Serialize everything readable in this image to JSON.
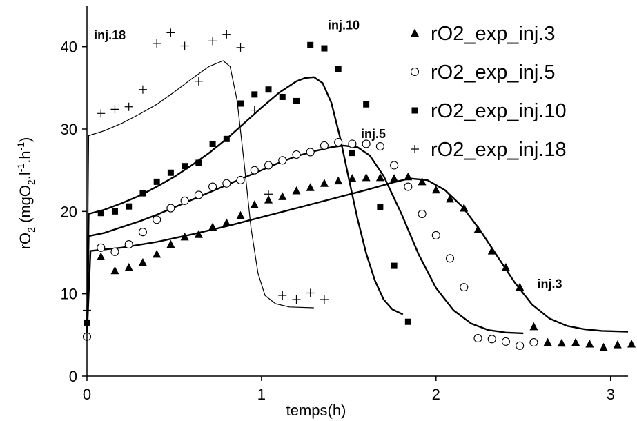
{
  "chart_data": {
    "type": "scatter",
    "title": "",
    "xlabel": "temps(h)",
    "ylabel": {
      "main": "rO",
      "sub": "2",
      "unit": " (mgO",
      "unit_sub": "2",
      "unit_rest": ".l",
      "sup1": "-1",
      "mid": ".h",
      "sup2": "-1",
      "close": ")"
    },
    "xlim": [
      0,
      3.1
    ],
    "ylim": [
      0,
      45
    ],
    "xticks": [
      0,
      1,
      2,
      3
    ],
    "yticks": [
      0,
      10,
      20,
      30,
      40
    ],
    "grid": false,
    "legend": "top-right",
    "series": [
      {
        "name": "rO2_exp_inj.3",
        "marker": "triangle",
        "points": [
          [
            0,
            5
          ],
          [
            0.08,
            14.5
          ],
          [
            0.16,
            12.8
          ],
          [
            0.24,
            13.2
          ],
          [
            0.32,
            13.8
          ],
          [
            0.4,
            14.8
          ],
          [
            0.48,
            16
          ],
          [
            0.56,
            16.9
          ],
          [
            0.64,
            17.2
          ],
          [
            0.72,
            18.1
          ],
          [
            0.8,
            18.6
          ],
          [
            0.88,
            19.5
          ],
          [
            0.96,
            20.8
          ],
          [
            1.04,
            21.4
          ],
          [
            1.12,
            21.8
          ],
          [
            1.2,
            22.5
          ],
          [
            1.28,
            22.9
          ],
          [
            1.36,
            23.4
          ],
          [
            1.44,
            23.7
          ],
          [
            1.52,
            24
          ],
          [
            1.6,
            24.1
          ],
          [
            1.68,
            24.1
          ],
          [
            1.76,
            24
          ],
          [
            1.84,
            24.2
          ],
          [
            1.92,
            23.6
          ],
          [
            2.0,
            22.6
          ],
          [
            2.08,
            21.5
          ],
          [
            2.16,
            20.4
          ],
          [
            2.24,
            17.8
          ],
          [
            2.32,
            15.2
          ],
          [
            2.4,
            13.2
          ],
          [
            2.48,
            10.8
          ],
          [
            2.56,
            6
          ],
          [
            2.64,
            4.1
          ],
          [
            2.72,
            4
          ],
          [
            2.8,
            4.1
          ],
          [
            2.88,
            3.9
          ],
          [
            2.96,
            3.5
          ],
          [
            3.04,
            3.8
          ],
          [
            3.12,
            3.9
          ]
        ]
      },
      {
        "name": "rO2_exp_inj.5",
        "marker": "circle",
        "points": [
          [
            0,
            4.8
          ],
          [
            0.08,
            15.6
          ],
          [
            0.16,
            15.1
          ],
          [
            0.24,
            16
          ],
          [
            0.32,
            17.5
          ],
          [
            0.4,
            19
          ],
          [
            0.48,
            20.4
          ],
          [
            0.56,
            21.3
          ],
          [
            0.64,
            22
          ],
          [
            0.72,
            23
          ],
          [
            0.8,
            23.4
          ],
          [
            0.88,
            23.8
          ],
          [
            0.96,
            25
          ],
          [
            1.04,
            25.6
          ],
          [
            1.12,
            26.2
          ],
          [
            1.2,
            26.9
          ],
          [
            1.28,
            27.2
          ],
          [
            1.36,
            28
          ],
          [
            1.44,
            28.4
          ],
          [
            1.52,
            28.2
          ],
          [
            1.6,
            28.2
          ],
          [
            1.68,
            27.9
          ],
          [
            1.76,
            25.6
          ],
          [
            1.84,
            23
          ],
          [
            1.92,
            19.7
          ],
          [
            2.0,
            17.1
          ],
          [
            2.08,
            14.3
          ],
          [
            2.16,
            10.8
          ],
          [
            2.24,
            4.6
          ],
          [
            2.32,
            4.5
          ],
          [
            2.4,
            4.2
          ],
          [
            2.48,
            3.7
          ],
          [
            2.56,
            4.1
          ]
        ]
      },
      {
        "name": "rO2_exp_inj.10",
        "marker": "square",
        "points": [
          [
            0,
            6.5
          ],
          [
            0.08,
            19.8
          ],
          [
            0.16,
            20
          ],
          [
            0.24,
            20.6
          ],
          [
            0.32,
            22.2
          ],
          [
            0.4,
            23.6
          ],
          [
            0.48,
            24.7
          ],
          [
            0.56,
            25.5
          ],
          [
            0.64,
            25.9
          ],
          [
            0.72,
            28.2
          ],
          [
            0.8,
            28.8
          ],
          [
            0.88,
            33.1
          ],
          [
            0.96,
            34.2
          ],
          [
            1.04,
            34.8
          ],
          [
            1.12,
            33.9
          ],
          [
            1.2,
            33.4
          ],
          [
            1.28,
            40.2
          ],
          [
            1.36,
            39.8
          ],
          [
            1.44,
            37.3
          ],
          [
            1.52,
            27.1
          ],
          [
            1.6,
            33
          ],
          [
            1.68,
            20.5
          ],
          [
            1.76,
            13.4
          ],
          [
            1.84,
            6.6
          ]
        ]
      },
      {
        "name": "rO2_exp_inj.18",
        "marker": "plus",
        "points": [
          [
            0,
            8
          ],
          [
            0.08,
            31.9
          ],
          [
            0.16,
            32.4
          ],
          [
            0.24,
            32.7
          ],
          [
            0.32,
            34.8
          ],
          [
            0.4,
            40.4
          ],
          [
            0.48,
            41.7
          ],
          [
            0.56,
            40.1
          ],
          [
            0.64,
            35.8
          ],
          [
            0.72,
            40.7
          ],
          [
            0.8,
            41.5
          ],
          [
            0.88,
            39.9
          ],
          [
            0.96,
            32.3
          ],
          [
            1.04,
            22.1
          ],
          [
            1.12,
            9.8
          ],
          [
            1.2,
            9.3
          ],
          [
            1.28,
            10.1
          ],
          [
            1.36,
            9.3
          ]
        ]
      }
    ],
    "model_curves": [
      {
        "label": "inj.18",
        "width": 1.2,
        "points": [
          [
            0,
            5
          ],
          [
            0.01,
            29.2
          ],
          [
            0.1,
            29.8
          ],
          [
            0.2,
            30.7
          ],
          [
            0.3,
            31.8
          ],
          [
            0.4,
            33
          ],
          [
            0.5,
            34.5
          ],
          [
            0.6,
            36.1
          ],
          [
            0.7,
            37.6
          ],
          [
            0.78,
            38.3
          ],
          [
            0.82,
            37.6
          ],
          [
            0.86,
            33.5
          ],
          [
            0.9,
            26
          ],
          [
            0.94,
            18
          ],
          [
            0.98,
            12.5
          ],
          [
            1.02,
            9.8
          ],
          [
            1.08,
            8.8
          ],
          [
            1.16,
            8.4
          ],
          [
            1.3,
            8.3
          ]
        ]
      },
      {
        "label": "inj.10",
        "width": 2.4,
        "points": [
          [
            0,
            5
          ],
          [
            0.01,
            19.7
          ],
          [
            0.1,
            20.2
          ],
          [
            0.2,
            21
          ],
          [
            0.3,
            21.9
          ],
          [
            0.4,
            23
          ],
          [
            0.5,
            24.2
          ],
          [
            0.6,
            25.6
          ],
          [
            0.7,
            27.1
          ],
          [
            0.8,
            28.8
          ],
          [
            0.9,
            30.7
          ],
          [
            1.0,
            32.6
          ],
          [
            1.1,
            34.4
          ],
          [
            1.2,
            35.8
          ],
          [
            1.25,
            36.2
          ],
          [
            1.3,
            36.3
          ],
          [
            1.35,
            35.6
          ],
          [
            1.4,
            33.2
          ],
          [
            1.45,
            29
          ],
          [
            1.5,
            24
          ],
          [
            1.55,
            19.1
          ],
          [
            1.6,
            14.9
          ],
          [
            1.65,
            11.6
          ],
          [
            1.7,
            9.3
          ],
          [
            1.75,
            8.1
          ],
          [
            1.81,
            7.5
          ]
        ]
      },
      {
        "label": "inj.5",
        "width": 2.4,
        "points": [
          [
            0,
            5
          ],
          [
            0.01,
            17
          ],
          [
            0.1,
            17.4
          ],
          [
            0.2,
            18.1
          ],
          [
            0.3,
            18.8
          ],
          [
            0.4,
            19.6
          ],
          [
            0.5,
            20.5
          ],
          [
            0.6,
            21.4
          ],
          [
            0.7,
            22.3
          ],
          [
            0.8,
            23.2
          ],
          [
            0.9,
            24.1
          ],
          [
            1.0,
            25
          ],
          [
            1.1,
            25.9
          ],
          [
            1.2,
            26.7
          ],
          [
            1.3,
            27.3
          ],
          [
            1.4,
            27.8
          ],
          [
            1.47,
            28
          ],
          [
            1.55,
            27.8
          ],
          [
            1.62,
            26.8
          ],
          [
            1.7,
            24.3
          ],
          [
            1.8,
            19.8
          ],
          [
            1.9,
            14.8
          ],
          [
            2.0,
            10.7
          ],
          [
            2.1,
            8
          ],
          [
            2.2,
            6.4
          ],
          [
            2.3,
            5.6
          ],
          [
            2.4,
            5.3
          ],
          [
            2.5,
            5.2
          ]
        ]
      },
      {
        "label": "inj.3",
        "width": 2.4,
        "points": [
          [
            0,
            5
          ],
          [
            0.02,
            15.2
          ],
          [
            0.2,
            15.6
          ],
          [
            0.4,
            16.3
          ],
          [
            0.6,
            17.2
          ],
          [
            0.8,
            18.2
          ],
          [
            1.0,
            19.3
          ],
          [
            1.2,
            20.4
          ],
          [
            1.4,
            21.5
          ],
          [
            1.6,
            22.6
          ],
          [
            1.75,
            23.5
          ],
          [
            1.85,
            24
          ],
          [
            1.95,
            23.8
          ],
          [
            2.05,
            22.6
          ],
          [
            2.15,
            20.6
          ],
          [
            2.25,
            17.8
          ],
          [
            2.35,
            14.6
          ],
          [
            2.45,
            11.4
          ],
          [
            2.55,
            8.7
          ],
          [
            2.65,
            7
          ],
          [
            2.75,
            6.1
          ],
          [
            2.85,
            5.7
          ],
          [
            2.95,
            5.5
          ],
          [
            3.1,
            5.4
          ]
        ]
      }
    ],
    "annotations": [
      {
        "text": "inj.18",
        "x": 0.04,
        "y": 40.9
      },
      {
        "text": "inj.10",
        "x": 1.38,
        "y": 42.1
      },
      {
        "text": "inj.5",
        "x": 1.57,
        "y": 28.9
      },
      {
        "text": "inj.3",
        "x": 2.58,
        "y": 10.7
      }
    ]
  }
}
